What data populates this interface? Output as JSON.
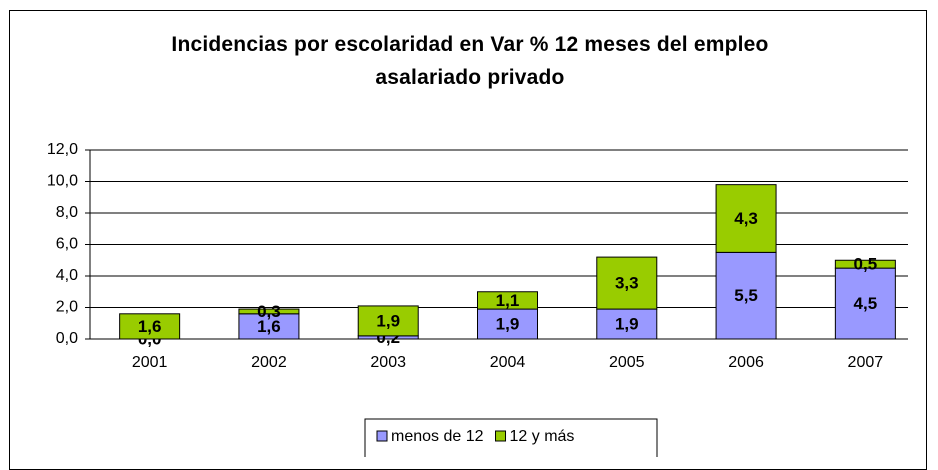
{
  "chart_data": {
    "type": "stacked_bar",
    "title": "Incidencias por escolaridad en Var % 12 meses del empleo asalariado privado",
    "categories": [
      "2001",
      "2002",
      "2003",
      "2004",
      "2005",
      "2006",
      "2007"
    ],
    "series": [
      {
        "name": "menos de 12",
        "color": "#9999ff",
        "values": [
          0.0,
          1.6,
          0.2,
          1.9,
          1.9,
          5.5,
          4.5
        ],
        "value_labels": [
          "0,0",
          "1,6",
          "0,2",
          "1,9",
          "1,9",
          "5,5",
          "4,5"
        ]
      },
      {
        "name": "12 y más",
        "color": "#99cc00",
        "values": [
          1.6,
          0.3,
          1.9,
          1.1,
          3.3,
          4.3,
          0.5
        ],
        "value_labels": [
          "1,6",
          "0,3",
          "1,9",
          "1,1",
          "3,3",
          "4,3",
          "0,5"
        ]
      }
    ],
    "ylim": [
      0,
      12
    ],
    "yticks": [
      {
        "value": 0,
        "label": "0,0"
      },
      {
        "value": 2,
        "label": "2,0"
      },
      {
        "value": 4,
        "label": "4,0"
      },
      {
        "value": 6,
        "label": "6,0"
      },
      {
        "value": 8,
        "label": "8,0"
      },
      {
        "value": 10,
        "label": "10,0"
      },
      {
        "value": 12,
        "label": "12,0"
      }
    ],
    "grid": true,
    "legend": "bottom"
  }
}
